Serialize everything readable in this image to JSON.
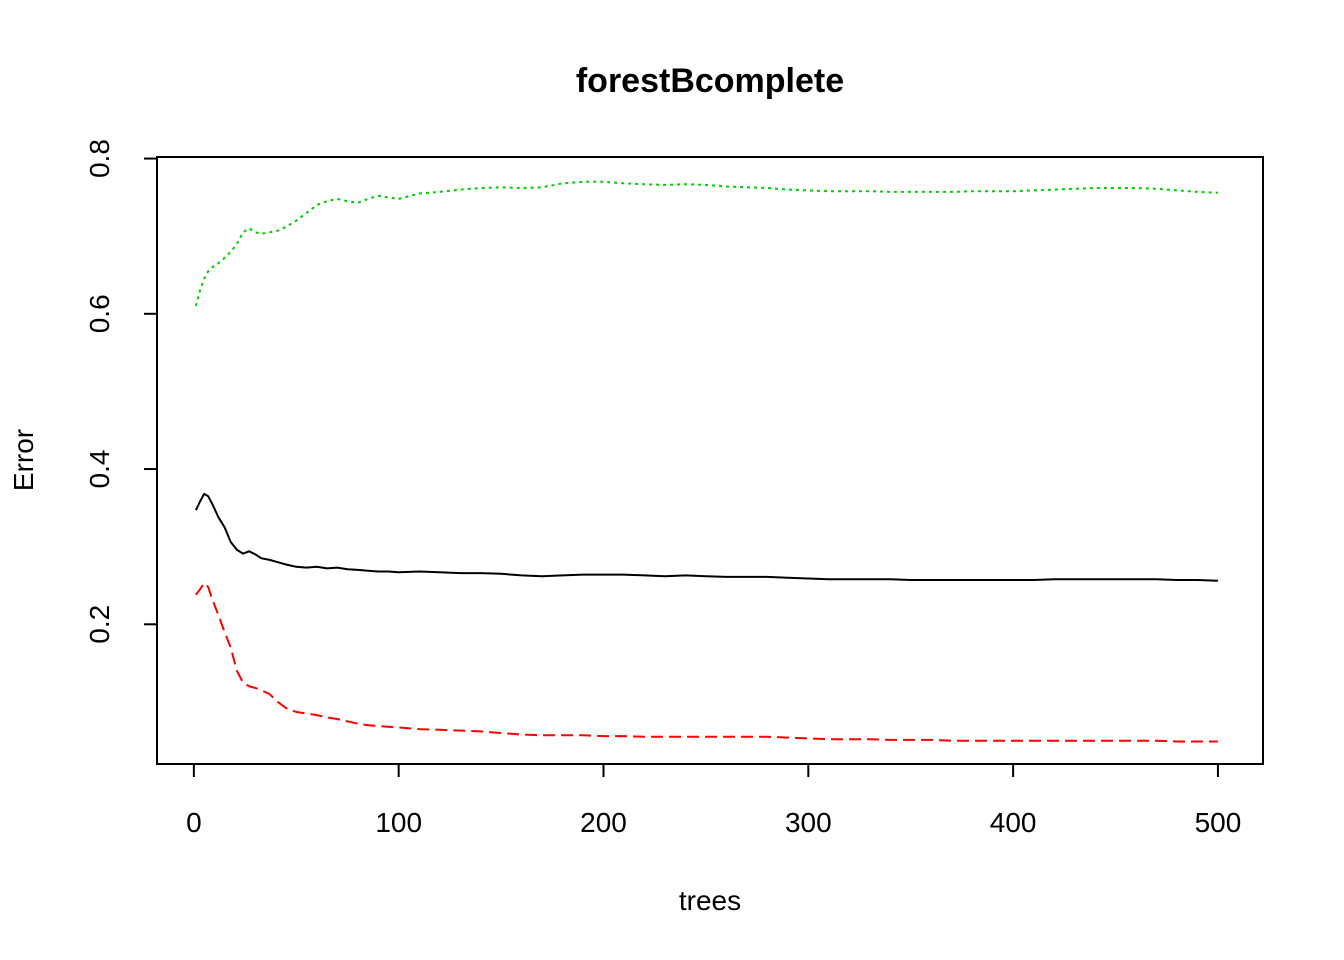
{
  "chart_data": {
    "type": "line",
    "title": "forestBcomplete",
    "xlabel": "trees",
    "ylabel": "Error",
    "xlim": [
      -18,
      522
    ],
    "ylim": [
      0.02,
      0.802
    ],
    "xticks": [
      0,
      100,
      200,
      300,
      400,
      500
    ],
    "yticks": [
      0.2,
      0.4,
      0.6,
      0.8
    ],
    "xtick_labels": [
      "0",
      "100",
      "200",
      "300",
      "400",
      "500"
    ],
    "ytick_labels": [
      "0.2",
      "0.4",
      "0.6",
      "0.8"
    ],
    "grid": false,
    "legend": "none",
    "series": [
      {
        "color": "#000000",
        "dash": "solid",
        "points": [
          [
            1,
            0.347
          ],
          [
            3,
            0.358
          ],
          [
            5,
            0.368
          ],
          [
            7,
            0.365
          ],
          [
            9,
            0.355
          ],
          [
            12,
            0.338
          ],
          [
            15,
            0.325
          ],
          [
            18,
            0.306
          ],
          [
            21,
            0.296
          ],
          [
            24,
            0.291
          ],
          [
            27,
            0.294
          ],
          [
            30,
            0.29
          ],
          [
            33,
            0.285
          ],
          [
            37,
            0.283
          ],
          [
            41,
            0.28
          ],
          [
            45,
            0.277
          ],
          [
            50,
            0.274
          ],
          [
            55,
            0.273
          ],
          [
            60,
            0.274
          ],
          [
            65,
            0.272
          ],
          [
            70,
            0.273
          ],
          [
            75,
            0.271
          ],
          [
            80,
            0.27
          ],
          [
            85,
            0.269
          ],
          [
            90,
            0.268
          ],
          [
            95,
            0.268
          ],
          [
            100,
            0.267
          ],
          [
            110,
            0.268
          ],
          [
            120,
            0.267
          ],
          [
            130,
            0.266
          ],
          [
            140,
            0.266
          ],
          [
            150,
            0.265
          ],
          [
            160,
            0.263
          ],
          [
            170,
            0.262
          ],
          [
            180,
            0.263
          ],
          [
            190,
            0.264
          ],
          [
            200,
            0.264
          ],
          [
            210,
            0.264
          ],
          [
            220,
            0.263
          ],
          [
            230,
            0.262
          ],
          [
            240,
            0.263
          ],
          [
            250,
            0.262
          ],
          [
            260,
            0.261
          ],
          [
            270,
            0.261
          ],
          [
            280,
            0.261
          ],
          [
            290,
            0.26
          ],
          [
            300,
            0.259
          ],
          [
            310,
            0.258
          ],
          [
            320,
            0.258
          ],
          [
            330,
            0.258
          ],
          [
            340,
            0.258
          ],
          [
            350,
            0.257
          ],
          [
            360,
            0.257
          ],
          [
            370,
            0.257
          ],
          [
            380,
            0.257
          ],
          [
            390,
            0.257
          ],
          [
            400,
            0.257
          ],
          [
            410,
            0.257
          ],
          [
            420,
            0.258
          ],
          [
            430,
            0.258
          ],
          [
            440,
            0.258
          ],
          [
            450,
            0.258
          ],
          [
            460,
            0.258
          ],
          [
            470,
            0.258
          ],
          [
            480,
            0.257
          ],
          [
            490,
            0.257
          ],
          [
            500,
            0.256
          ]
        ]
      },
      {
        "color": "#ff0000",
        "dash": "dashed",
        "points": [
          [
            1,
            0.238
          ],
          [
            3,
            0.245
          ],
          [
            5,
            0.253
          ],
          [
            7,
            0.248
          ],
          [
            9,
            0.232
          ],
          [
            12,
            0.212
          ],
          [
            15,
            0.19
          ],
          [
            18,
            0.17
          ],
          [
            21,
            0.14
          ],
          [
            24,
            0.125
          ],
          [
            27,
            0.12
          ],
          [
            30,
            0.118
          ],
          [
            33,
            0.115
          ],
          [
            37,
            0.11
          ],
          [
            41,
            0.1
          ],
          [
            45,
            0.092
          ],
          [
            50,
            0.087
          ],
          [
            55,
            0.085
          ],
          [
            60,
            0.083
          ],
          [
            65,
            0.08
          ],
          [
            70,
            0.078
          ],
          [
            75,
            0.075
          ],
          [
            80,
            0.072
          ],
          [
            85,
            0.07
          ],
          [
            90,
            0.069
          ],
          [
            95,
            0.068
          ],
          [
            100,
            0.067
          ],
          [
            110,
            0.065
          ],
          [
            120,
            0.064
          ],
          [
            130,
            0.063
          ],
          [
            140,
            0.062
          ],
          [
            150,
            0.06
          ],
          [
            160,
            0.058
          ],
          [
            170,
            0.057
          ],
          [
            180,
            0.057
          ],
          [
            190,
            0.057
          ],
          [
            200,
            0.056
          ],
          [
            210,
            0.056
          ],
          [
            220,
            0.055
          ],
          [
            230,
            0.055
          ],
          [
            240,
            0.055
          ],
          [
            250,
            0.055
          ],
          [
            260,
            0.055
          ],
          [
            270,
            0.055
          ],
          [
            280,
            0.055
          ],
          [
            290,
            0.054
          ],
          [
            300,
            0.053
          ],
          [
            310,
            0.052
          ],
          [
            320,
            0.052
          ],
          [
            330,
            0.052
          ],
          [
            340,
            0.051
          ],
          [
            350,
            0.051
          ],
          [
            360,
            0.051
          ],
          [
            370,
            0.05
          ],
          [
            380,
            0.05
          ],
          [
            390,
            0.05
          ],
          [
            400,
            0.05
          ],
          [
            410,
            0.05
          ],
          [
            420,
            0.05
          ],
          [
            430,
            0.05
          ],
          [
            440,
            0.05
          ],
          [
            450,
            0.05
          ],
          [
            460,
            0.05
          ],
          [
            470,
            0.05
          ],
          [
            480,
            0.049
          ],
          [
            490,
            0.049
          ],
          [
            500,
            0.049
          ]
        ]
      },
      {
        "color": "#00cd00",
        "dash": "dotted",
        "points": [
          [
            1,
            0.61
          ],
          [
            3,
            0.63
          ],
          [
            5,
            0.645
          ],
          [
            7,
            0.655
          ],
          [
            9,
            0.66
          ],
          [
            12,
            0.665
          ],
          [
            15,
            0.672
          ],
          [
            18,
            0.68
          ],
          [
            21,
            0.69
          ],
          [
            24,
            0.705
          ],
          [
            27,
            0.71
          ],
          [
            30,
            0.705
          ],
          [
            33,
            0.703
          ],
          [
            37,
            0.705
          ],
          [
            41,
            0.707
          ],
          [
            45,
            0.712
          ],
          [
            50,
            0.72
          ],
          [
            55,
            0.73
          ],
          [
            60,
            0.74
          ],
          [
            65,
            0.745
          ],
          [
            70,
            0.748
          ],
          [
            75,
            0.745
          ],
          [
            80,
            0.743
          ],
          [
            85,
            0.748
          ],
          [
            90,
            0.752
          ],
          [
            95,
            0.75
          ],
          [
            100,
            0.748
          ],
          [
            110,
            0.755
          ],
          [
            120,
            0.757
          ],
          [
            130,
            0.76
          ],
          [
            140,
            0.762
          ],
          [
            150,
            0.763
          ],
          [
            160,
            0.762
          ],
          [
            170,
            0.763
          ],
          [
            180,
            0.768
          ],
          [
            190,
            0.77
          ],
          [
            200,
            0.77
          ],
          [
            210,
            0.768
          ],
          [
            220,
            0.767
          ],
          [
            230,
            0.766
          ],
          [
            240,
            0.767
          ],
          [
            250,
            0.766
          ],
          [
            260,
            0.764
          ],
          [
            270,
            0.763
          ],
          [
            280,
            0.762
          ],
          [
            290,
            0.76
          ],
          [
            300,
            0.759
          ],
          [
            310,
            0.758
          ],
          [
            320,
            0.758
          ],
          [
            330,
            0.758
          ],
          [
            340,
            0.757
          ],
          [
            350,
            0.757
          ],
          [
            360,
            0.757
          ],
          [
            370,
            0.757
          ],
          [
            380,
            0.758
          ],
          [
            390,
            0.758
          ],
          [
            400,
            0.758
          ],
          [
            410,
            0.759
          ],
          [
            420,
            0.76
          ],
          [
            430,
            0.761
          ],
          [
            440,
            0.762
          ],
          [
            450,
            0.762
          ],
          [
            460,
            0.762
          ],
          [
            470,
            0.761
          ],
          [
            480,
            0.759
          ],
          [
            490,
            0.757
          ],
          [
            500,
            0.756
          ]
        ]
      }
    ]
  }
}
